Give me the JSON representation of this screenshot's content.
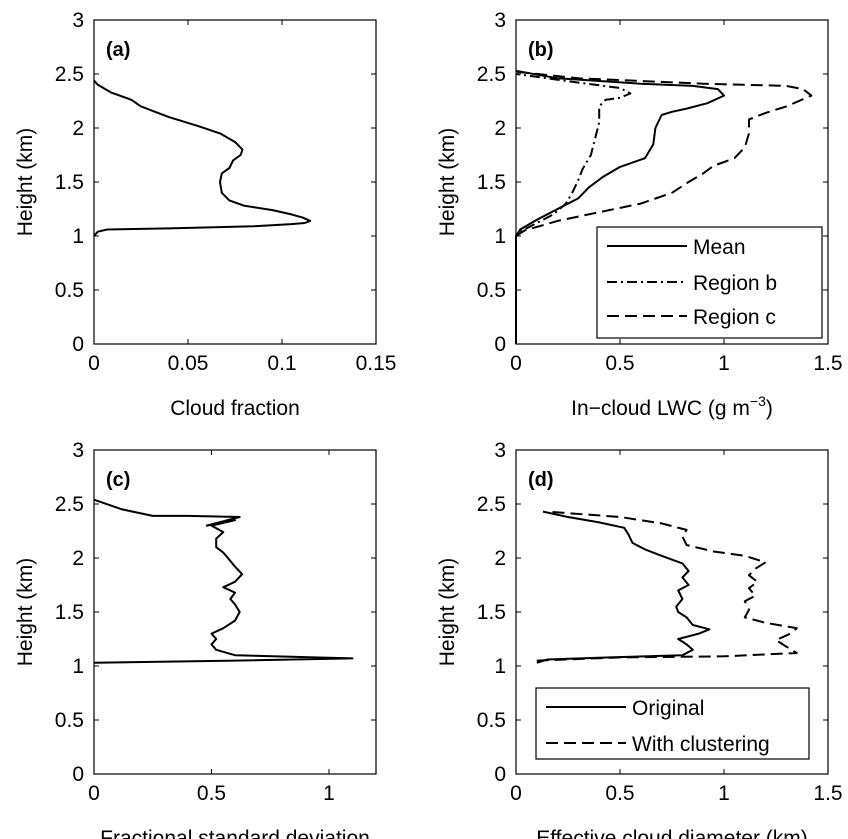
{
  "chart_data": [
    {
      "type": "line",
      "panel_label": "(a)",
      "xlabel": "Cloud fraction",
      "ylabel": "Height (km)",
      "xlim": [
        0,
        0.15
      ],
      "ylim": [
        0,
        3
      ],
      "xticks": [
        "0",
        "0.05",
        "0.1",
        "0.15"
      ],
      "yticks": [
        "0",
        "0.5",
        "1",
        "1.5",
        "2",
        "2.5",
        "3"
      ],
      "grid": false,
      "series": [
        {
          "style": "solid",
          "points": [
            [
              0,
              1.0
            ],
            [
              0.002,
              1.04
            ],
            [
              0.007,
              1.06
            ],
            [
              0.04,
              1.07
            ],
            [
              0.085,
              1.09
            ],
            [
              0.105,
              1.11
            ],
            [
              0.112,
              1.12
            ],
            [
              0.115,
              1.14
            ],
            [
              0.111,
              1.17
            ],
            [
              0.105,
              1.2
            ],
            [
              0.095,
              1.24
            ],
            [
              0.08,
              1.28
            ],
            [
              0.072,
              1.33
            ],
            [
              0.068,
              1.4
            ],
            [
              0.067,
              1.5
            ],
            [
              0.068,
              1.58
            ],
            [
              0.072,
              1.63
            ],
            [
              0.074,
              1.7
            ],
            [
              0.078,
              1.75
            ],
            [
              0.079,
              1.8
            ],
            [
              0.075,
              1.87
            ],
            [
              0.067,
              1.95
            ],
            [
              0.055,
              2.02
            ],
            [
              0.04,
              2.1
            ],
            [
              0.025,
              2.2
            ],
            [
              0.02,
              2.26
            ],
            [
              0.009,
              2.33
            ],
            [
              0.002,
              2.4
            ],
            [
              0,
              2.44
            ]
          ]
        }
      ]
    },
    {
      "type": "line",
      "panel_label": "(b)",
      "xlabel": "In−cloud LWC (g m",
      "xlabel_sup": "−3",
      "xlabel_end": ")",
      "ylabel": "Height (km)",
      "xlim": [
        0,
        1.5
      ],
      "ylim": [
        0,
        3
      ],
      "xticks": [
        "0",
        "0.5",
        "1",
        "1.5"
      ],
      "yticks": [
        "0",
        "0.5",
        "1",
        "1.5",
        "2",
        "2.5",
        "3"
      ],
      "grid": false,
      "legend": {
        "position": "bottom-right",
        "entries": [
          "Mean",
          "Region b",
          "Region c"
        ]
      },
      "series": [
        {
          "name": "Mean",
          "style": "solid",
          "points": [
            [
              0,
              0
            ],
            [
              0,
              1.0
            ],
            [
              0.02,
              1.06
            ],
            [
              0.1,
              1.15
            ],
            [
              0.2,
              1.25
            ],
            [
              0.3,
              1.35
            ],
            [
              0.35,
              1.45
            ],
            [
              0.42,
              1.55
            ],
            [
              0.5,
              1.64
            ],
            [
              0.62,
              1.72
            ],
            [
              0.66,
              1.85
            ],
            [
              0.67,
              2.0
            ],
            [
              0.7,
              2.12
            ],
            [
              0.75,
              2.15
            ],
            [
              0.82,
              2.18
            ],
            [
              0.92,
              2.23
            ],
            [
              1.0,
              2.3
            ],
            [
              0.97,
              2.36
            ],
            [
              0.85,
              2.39
            ],
            [
              0.6,
              2.41
            ],
            [
              0.2,
              2.46
            ],
            [
              0,
              2.53
            ]
          ]
        },
        {
          "name": "Region b",
          "style": "dashdot",
          "points": [
            [
              0,
              0
            ],
            [
              0,
              1.0
            ],
            [
              0.03,
              1.05
            ],
            [
              0.1,
              1.12
            ],
            [
              0.18,
              1.2
            ],
            [
              0.24,
              1.3
            ],
            [
              0.27,
              1.4
            ],
            [
              0.3,
              1.52
            ],
            [
              0.32,
              1.62
            ],
            [
              0.36,
              1.75
            ],
            [
              0.38,
              1.9
            ],
            [
              0.4,
              2.05
            ],
            [
              0.4,
              2.2
            ],
            [
              0.43,
              2.26
            ],
            [
              0.5,
              2.28
            ],
            [
              0.55,
              2.32
            ],
            [
              0.5,
              2.37
            ],
            [
              0.3,
              2.42
            ],
            [
              0,
              2.5
            ]
          ]
        },
        {
          "name": "Region c",
          "style": "dashed",
          "points": [
            [
              0,
              0
            ],
            [
              0,
              1.0
            ],
            [
              0.04,
              1.05
            ],
            [
              0.2,
              1.14
            ],
            [
              0.4,
              1.22
            ],
            [
              0.6,
              1.3
            ],
            [
              0.75,
              1.4
            ],
            [
              0.83,
              1.5
            ],
            [
              0.9,
              1.58
            ],
            [
              0.95,
              1.65
            ],
            [
              1.05,
              1.72
            ],
            [
              1.1,
              1.82
            ],
            [
              1.12,
              1.95
            ],
            [
              1.12,
              2.08
            ],
            [
              1.2,
              2.14
            ],
            [
              1.3,
              2.2
            ],
            [
              1.42,
              2.3
            ],
            [
              1.38,
              2.36
            ],
            [
              1.3,
              2.39
            ],
            [
              0.9,
              2.41
            ],
            [
              0.3,
              2.46
            ],
            [
              0,
              2.52
            ]
          ]
        }
      ]
    },
    {
      "type": "line",
      "panel_label": "(c)",
      "xlabel": "Fractional standard deviation",
      "ylabel": "Height (km)",
      "xlim": [
        0,
        1.2
      ],
      "ylim": [
        0,
        3
      ],
      "xticks": [
        "0",
        "0.5",
        "1"
      ],
      "yticks": [
        "0",
        "0.5",
        "1",
        "1.5",
        "2",
        "2.5",
        "3"
      ],
      "grid": false,
      "series": [
        {
          "style": "solid",
          "points": [
            [
              0,
              1.03
            ],
            [
              0.6,
              1.05
            ],
            [
              1.1,
              1.07
            ],
            [
              0.6,
              1.1
            ],
            [
              0.52,
              1.15
            ],
            [
              0.5,
              1.2
            ],
            [
              0.52,
              1.25
            ],
            [
              0.5,
              1.3
            ],
            [
              0.55,
              1.35
            ],
            [
              0.6,
              1.42
            ],
            [
              0.62,
              1.5
            ],
            [
              0.6,
              1.57
            ],
            [
              0.58,
              1.62
            ],
            [
              0.6,
              1.68
            ],
            [
              0.55,
              1.73
            ],
            [
              0.6,
              1.78
            ],
            [
              0.63,
              1.85
            ],
            [
              0.6,
              1.92
            ],
            [
              0.57,
              2.0
            ],
            [
              0.55,
              2.05
            ],
            [
              0.52,
              2.1
            ],
            [
              0.52,
              2.18
            ],
            [
              0.55,
              2.24
            ],
            [
              0.5,
              2.3
            ],
            [
              0.6,
              2.35
            ],
            [
              0.48,
              2.3
            ],
            [
              0.62,
              2.38
            ],
            [
              0.4,
              2.39
            ],
            [
              0.25,
              2.39
            ],
            [
              0.12,
              2.45
            ],
            [
              0,
              2.54
            ]
          ]
        }
      ]
    },
    {
      "type": "line",
      "panel_label": "(d)",
      "xlabel": "Effective cloud diameter (km)",
      "ylabel": "Height (km)",
      "xlim": [
        0,
        1.5
      ],
      "ylim": [
        0,
        3
      ],
      "xticks": [
        "0",
        "0.5",
        "1",
        "1.5"
      ],
      "yticks": [
        "0",
        "0.5",
        "1",
        "1.5",
        "2",
        "2.5",
        "3"
      ],
      "grid": false,
      "legend": {
        "position": "bottom-right",
        "entries": [
          "Original",
          "With clustering"
        ]
      },
      "series": [
        {
          "name": "Original",
          "style": "solid",
          "points": [
            [
              0.1,
              1.03
            ],
            [
              0.15,
              1.06
            ],
            [
              0.45,
              1.08
            ],
            [
              0.8,
              1.1
            ],
            [
              0.85,
              1.15
            ],
            [
              0.82,
              1.2
            ],
            [
              0.78,
              1.25
            ],
            [
              0.88,
              1.3
            ],
            [
              0.93,
              1.34
            ],
            [
              0.85,
              1.38
            ],
            [
              0.82,
              1.45
            ],
            [
              0.78,
              1.5
            ],
            [
              0.77,
              1.55
            ],
            [
              0.8,
              1.62
            ],
            [
              0.78,
              1.7
            ],
            [
              0.83,
              1.75
            ],
            [
              0.8,
              1.82
            ],
            [
              0.83,
              1.88
            ],
            [
              0.8,
              1.95
            ],
            [
              0.7,
              2.02
            ],
            [
              0.62,
              2.08
            ],
            [
              0.56,
              2.14
            ],
            [
              0.54,
              2.22
            ],
            [
              0.52,
              2.28
            ],
            [
              0.4,
              2.33
            ],
            [
              0.25,
              2.38
            ],
            [
              0.13,
              2.43
            ]
          ]
        },
        {
          "name": "With clustering",
          "style": "dashed",
          "points": [
            [
              0.1,
              1.05
            ],
            [
              0.5,
              1.08
            ],
            [
              1.0,
              1.09
            ],
            [
              1.35,
              1.12
            ],
            [
              1.3,
              1.18
            ],
            [
              1.25,
              1.24
            ],
            [
              1.32,
              1.3
            ],
            [
              1.35,
              1.35
            ],
            [
              1.2,
              1.4
            ],
            [
              1.1,
              1.45
            ],
            [
              1.12,
              1.52
            ],
            [
              1.1,
              1.6
            ],
            [
              1.15,
              1.65
            ],
            [
              1.12,
              1.72
            ],
            [
              1.16,
              1.78
            ],
            [
              1.12,
              1.84
            ],
            [
              1.15,
              1.9
            ],
            [
              1.2,
              1.96
            ],
            [
              1.1,
              2.02
            ],
            [
              0.95,
              2.06
            ],
            [
              0.82,
              2.12
            ],
            [
              0.8,
              2.2
            ],
            [
              0.82,
              2.26
            ],
            [
              0.7,
              2.32
            ],
            [
              0.5,
              2.38
            ],
            [
              0.15,
              2.43
            ]
          ]
        }
      ]
    }
  ]
}
